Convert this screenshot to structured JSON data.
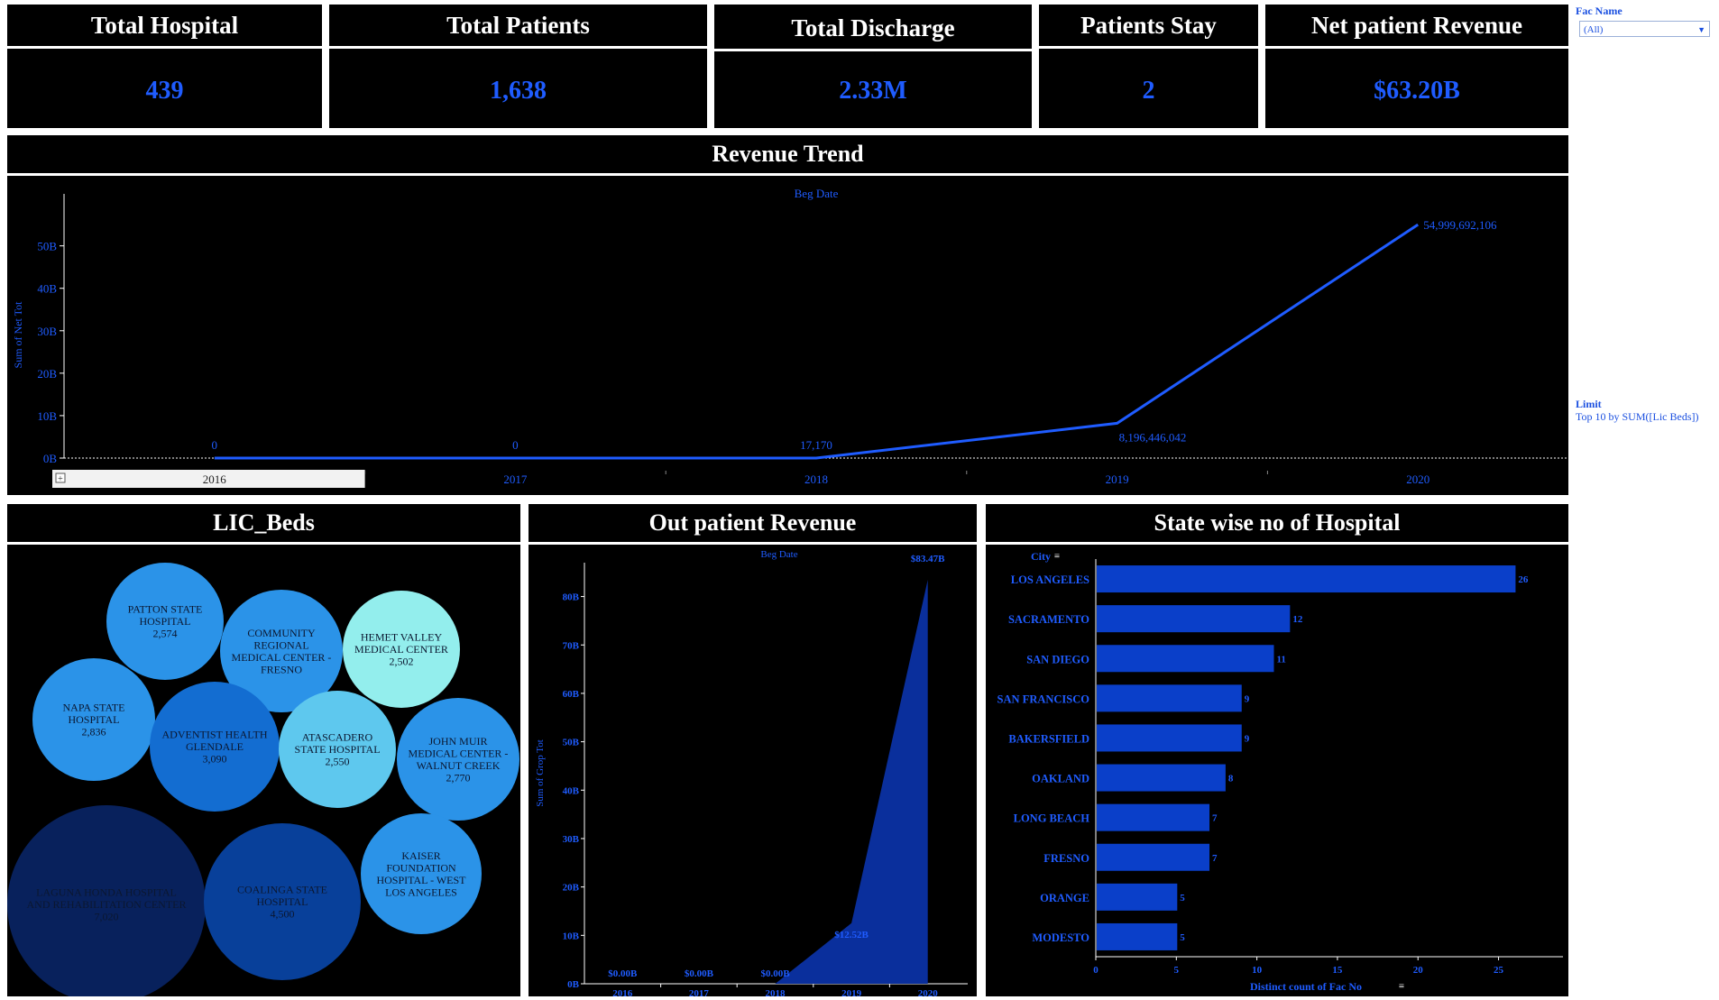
{
  "kpis": [
    {
      "title": "Total Hospital",
      "value": "439"
    },
    {
      "title": "Total Patients",
      "value": "1,638"
    },
    {
      "title": "Total Discharge",
      "value": "2.33M"
    },
    {
      "title": "Patients Stay",
      "value": "2"
    },
    {
      "title": "Net patient Revenue",
      "value": "$63.20B"
    }
  ],
  "filters": {
    "fac_name_label": "Fac Name",
    "fac_name_value": "(All)",
    "limit_label": "Limit",
    "limit_value": "Top 10 by SUM([Lic Beds])"
  },
  "colors": {
    "accent": "#1f5cff",
    "panel": "#000000",
    "bars": "#0a3fc9",
    "area": "#0a2f9c"
  },
  "revenue_trend": {
    "title": "Revenue Trend",
    "header_label": "Beg Date",
    "y_axis_title": "Sum of Net Tot",
    "chart_data": {
      "type": "line",
      "x": [
        "2016",
        "2017",
        "2018",
        "2019",
        "2020"
      ],
      "series": [
        {
          "values": [
            0,
            0,
            17170,
            8196446042,
            54999692106
          ]
        }
      ],
      "data_labels": [
        "0",
        "0",
        "17,170",
        "8,196,446,042",
        "54,999,692,106"
      ],
      "y_ticks": [
        "0B",
        "10B",
        "20B",
        "30B",
        "40B",
        "50B"
      ],
      "ylim": [
        0,
        58000000000
      ]
    }
  },
  "lic_beds": {
    "title": "LIC_Beds",
    "bubbles": [
      {
        "name": "PATTON STATE HOSPITAL",
        "lines": [
          "PATTON STATE",
          "HOSPITAL"
        ],
        "value": "2,574",
        "color": "#2b93e8"
      },
      {
        "name": "COMMUNITY REGIONAL MEDICAL CENTER - FRESNO",
        "lines": [
          "COMMUNITY",
          "REGIONAL",
          "MEDICAL CENTER -",
          "FRESNO"
        ],
        "value": "",
        "color": "#2b93e8"
      },
      {
        "name": "HEMET VALLEY MEDICAL CENTER",
        "lines": [
          "HEMET VALLEY",
          "MEDICAL CENTER"
        ],
        "value": "2,502",
        "color": "#93eeed"
      },
      {
        "name": "NAPA STATE HOSPITAL",
        "lines": [
          "NAPA STATE",
          "HOSPITAL"
        ],
        "value": "2,836",
        "color": "#2b93e8"
      },
      {
        "name": "ADVENTIST HEALTH GLENDALE",
        "lines": [
          "ADVENTIST HEALTH",
          "GLENDALE"
        ],
        "value": "3,090",
        "color": "#136dd1"
      },
      {
        "name": "ATASCADERO STATE HOSPITAL",
        "lines": [
          "ATASCADERO",
          "STATE HOSPITAL"
        ],
        "value": "2,550",
        "color": "#5ec8ee"
      },
      {
        "name": "JOHN MUIR MEDICAL CENTER - WALNUT CREEK",
        "lines": [
          "JOHN MUIR",
          "MEDICAL CENTER -",
          "WALNUT CREEK"
        ],
        "value": "2,770",
        "color": "#2b93e8"
      },
      {
        "name": "LAGUNA HONDA HOSPITAL AND REHABILITATION CENTER",
        "lines": [
          "LAGUNA HONDA HOSPITAL",
          "AND REHABILITATION CENTER"
        ],
        "value": "7,020",
        "color": "#08215c"
      },
      {
        "name": "COALINGA STATE HOSPITAL",
        "lines": [
          "COALINGA STATE",
          "HOSPITAL"
        ],
        "value": "4,500",
        "color": "#08409a"
      },
      {
        "name": "KAISER FOUNDATION HOSPITAL - WEST LOS ANGELES",
        "lines": [
          "KAISER",
          "FOUNDATION",
          "HOSPITAL - WEST",
          "LOS ANGELES"
        ],
        "value": "",
        "color": "#2b93e8"
      }
    ]
  },
  "outpatient": {
    "title": "Out patient Revenue",
    "header_label": "Beg Date",
    "y_axis_title": "Sum of Grop Tot",
    "chart_data": {
      "type": "area",
      "x": [
        "2016",
        "2017",
        "2018",
        "2019",
        "2020"
      ],
      "series": [
        {
          "values": [
            0,
            0,
            0,
            12520000000,
            83470000000
          ]
        }
      ],
      "data_labels": [
        "$0.00B",
        "$0.00B",
        "$0.00B",
        "$12.52B",
        "$83.47B"
      ],
      "y_ticks": [
        "0B",
        "10B",
        "20B",
        "30B",
        "40B",
        "50B",
        "60B",
        "70B",
        "80B"
      ],
      "ylim": [
        0,
        87000000000
      ]
    }
  },
  "state_hospitals": {
    "title": "State wise no of Hospital",
    "city_header": "City",
    "x_axis_title": "Distinct count of Fac No",
    "chart_data": {
      "type": "bar",
      "categories": [
        "LOS ANGELES",
        "SACRAMENTO",
        "SAN DIEGO",
        "SAN FRANCISCO",
        "BAKERSFIELD",
        "OAKLAND",
        "LONG BEACH",
        "FRESNO",
        "ORANGE",
        "MODESTO"
      ],
      "values": [
        26,
        12,
        11,
        9,
        9,
        8,
        7,
        7,
        5,
        5
      ],
      "x_ticks": [
        "0",
        "5",
        "10",
        "15",
        "20",
        "25"
      ],
      "xlim": [
        0,
        29
      ]
    }
  }
}
